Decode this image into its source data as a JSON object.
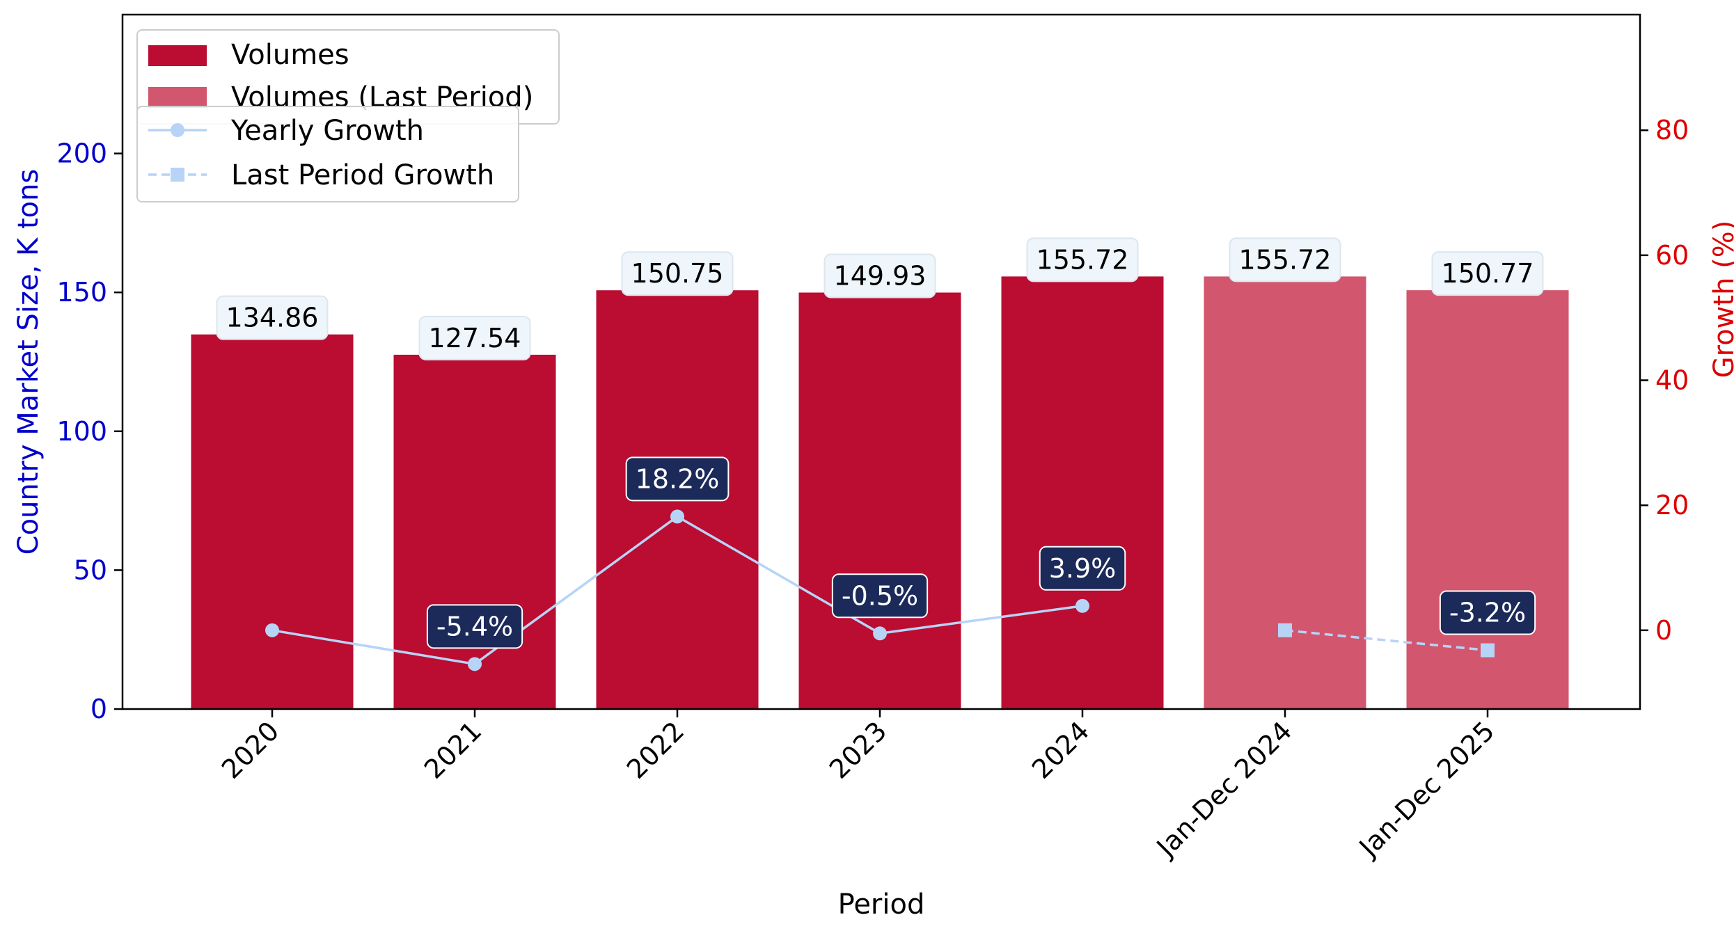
{
  "chart_data": {
    "type": "bar",
    "categories": [
      "2020",
      "2021",
      "2022",
      "2023",
      "2024",
      "Jan-Dec 2024",
      "Jan-Dec 2025"
    ],
    "series": [
      {
        "name": "Volumes",
        "type": "bar",
        "axis": "left",
        "color": "#bb0c31",
        "values": [
          134.86,
          127.54,
          150.75,
          149.93,
          155.72,
          null,
          null
        ],
        "labels": [
          "134.86",
          "127.54",
          "150.75",
          "149.93",
          "155.72",
          "",
          ""
        ]
      },
      {
        "name": "Volumes (Last Period)",
        "type": "bar",
        "axis": "left",
        "color": "#d2566d",
        "values": [
          null,
          null,
          null,
          null,
          null,
          155.72,
          150.77
        ],
        "labels": [
          "",
          "",
          "",
          "",
          "",
          "155.72",
          "150.77"
        ]
      },
      {
        "name": "Yearly Growth",
        "type": "line",
        "axis": "right",
        "color": "#b7d4f7",
        "marker": "circle",
        "values": [
          0,
          -5.4,
          18.2,
          -0.5,
          3.9,
          null,
          null
        ],
        "labels": [
          "",
          "-5.4%",
          "18.2%",
          "-0.5%",
          "3.9%",
          "",
          ""
        ]
      },
      {
        "name": "Last Period Growth",
        "type": "line",
        "axis": "right",
        "color": "#b7d4f7",
        "marker": "square",
        "dashed": true,
        "values": [
          null,
          null,
          null,
          null,
          null,
          0,
          -3.2
        ],
        "labels": [
          "",
          "",
          "",
          "",
          "",
          "",
          "-3.2%"
        ]
      }
    ],
    "xlabel": "Period",
    "ylabel": "Country Market Size, K tons",
    "y2label": "Growth (%)",
    "ylim": [
      0,
      250
    ],
    "y2lim": [
      -12.6,
      98.5
    ],
    "yticks": [
      0,
      50,
      100,
      150,
      200
    ],
    "y2ticks": [
      0,
      20,
      40,
      60,
      80
    ],
    "grid": false,
    "legend_position": "top-left",
    "colors": {
      "left_axis": "#0000cc",
      "right_axis": "#dd0000",
      "growth_label_bg": "#1c2a5a",
      "value_label_bg": "#eef6fc"
    }
  }
}
